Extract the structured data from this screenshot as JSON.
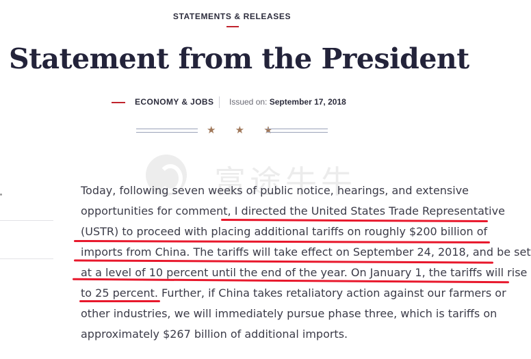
{
  "header": {
    "section_label": "STATEMENTS & RELEASES",
    "title": "Statement from the President"
  },
  "meta": {
    "category": "ECONOMY & JOBS",
    "issued_label": "Issued on:",
    "issued_date": "September 17, 2018"
  },
  "decoration": {
    "stars": "★ ★ ★",
    "watermark_text": "富途牛牛",
    "underline_color": "#e8182c",
    "accent_color": "#c0232d"
  },
  "body": {
    "lines": [
      "Today, following seven weeks of public notice, hearings, and extensive",
      "opportunities for comment, I directed the United States Trade Representative",
      "(USTR) to proceed with placing additional tariffs on roughly $200 billion of",
      "imports from China.  The tariffs will take effect on September 24, 2018, and be set",
      "at a level of 10 percent until the end of the year.  On January 1, the tariffs will rise",
      "to 25 percent.  Further, if China takes retaliatory action against our farmers or",
      "other industries, we will immediately pursue phase three, which is tariffs on",
      "approximately $267 billion of additional imports."
    ]
  }
}
